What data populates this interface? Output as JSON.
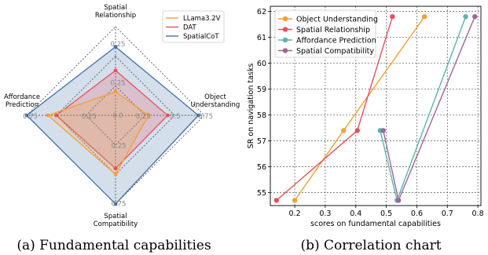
{
  "chart_data": [
    {
      "type": "radar",
      "caption": "(a) Fundamental capabilities",
      "axes": [
        "Spatial\nRelationship",
        "Object\nUnderstanding",
        "Spatial\nCompatibility",
        "Affordance\nPrediction"
      ],
      "scale_max": 0.75,
      "rings": [
        0.25,
        0.5,
        0.75
      ],
      "radial_ticks": {
        "Spatial Relationship": [
          "0.25",
          "0.25"
        ],
        "Object Understanding": [
          "0.25",
          "0.5",
          "0.75"
        ],
        "Spatial Compatibility": [
          "0.25",
          "0.75"
        ],
        "Affordance Prediction": [
          "0.25",
          "0.75"
        ]
      },
      "center_label": "0.0",
      "series": [
        {
          "name": "LLama3.2V",
          "color": "#f5a032",
          "values": [
            0.2,
            0.28,
            0.5,
            0.57
          ]
        },
        {
          "name": "DAT",
          "color": "#e8505b",
          "values": [
            0.38,
            0.44,
            0.45,
            0.5
          ]
        },
        {
          "name": "SpatialCoT",
          "color": "#3f6fa8",
          "values": [
            0.58,
            0.7,
            0.75,
            0.75
          ]
        }
      ]
    },
    {
      "type": "line",
      "caption": "(b) Correlation chart",
      "xlabel": "scores on fundamental capabilities",
      "ylabel": "SR on navigation tasks",
      "xlim": [
        0.12,
        0.81
      ],
      "ylim": [
        54.5,
        62.2
      ],
      "xticks": [
        0.2,
        0.3,
        0.4,
        0.5,
        0.6,
        0.7,
        0.8
      ],
      "yticks": [
        55,
        56,
        57,
        58,
        59,
        60,
        61,
        62
      ],
      "grid": true,
      "legend_position": "top-left",
      "series": [
        {
          "name": "Object Understanding",
          "color": "#f5a032",
          "points": [
            [
              0.2,
              54.7
            ],
            [
              0.36,
              57.4
            ],
            [
              0.625,
              61.8
            ]
          ]
        },
        {
          "name": "Spatial Relationship",
          "color": "#e8505b",
          "points": [
            [
              0.14,
              54.7
            ],
            [
              0.405,
              57.4
            ],
            [
              0.52,
              61.8
            ]
          ]
        },
        {
          "name": "Affordance Prediction",
          "color": "#5ab4ac",
          "points": [
            [
              0.48,
              57.4
            ],
            [
              0.535,
              54.7
            ],
            [
              0.76,
              61.8
            ]
          ]
        },
        {
          "name": "Spatial Compatibility",
          "color": "#a0649a",
          "points": [
            [
              0.49,
              57.4
            ],
            [
              0.54,
              54.7
            ],
            [
              0.79,
              61.8
            ]
          ]
        }
      ]
    }
  ]
}
